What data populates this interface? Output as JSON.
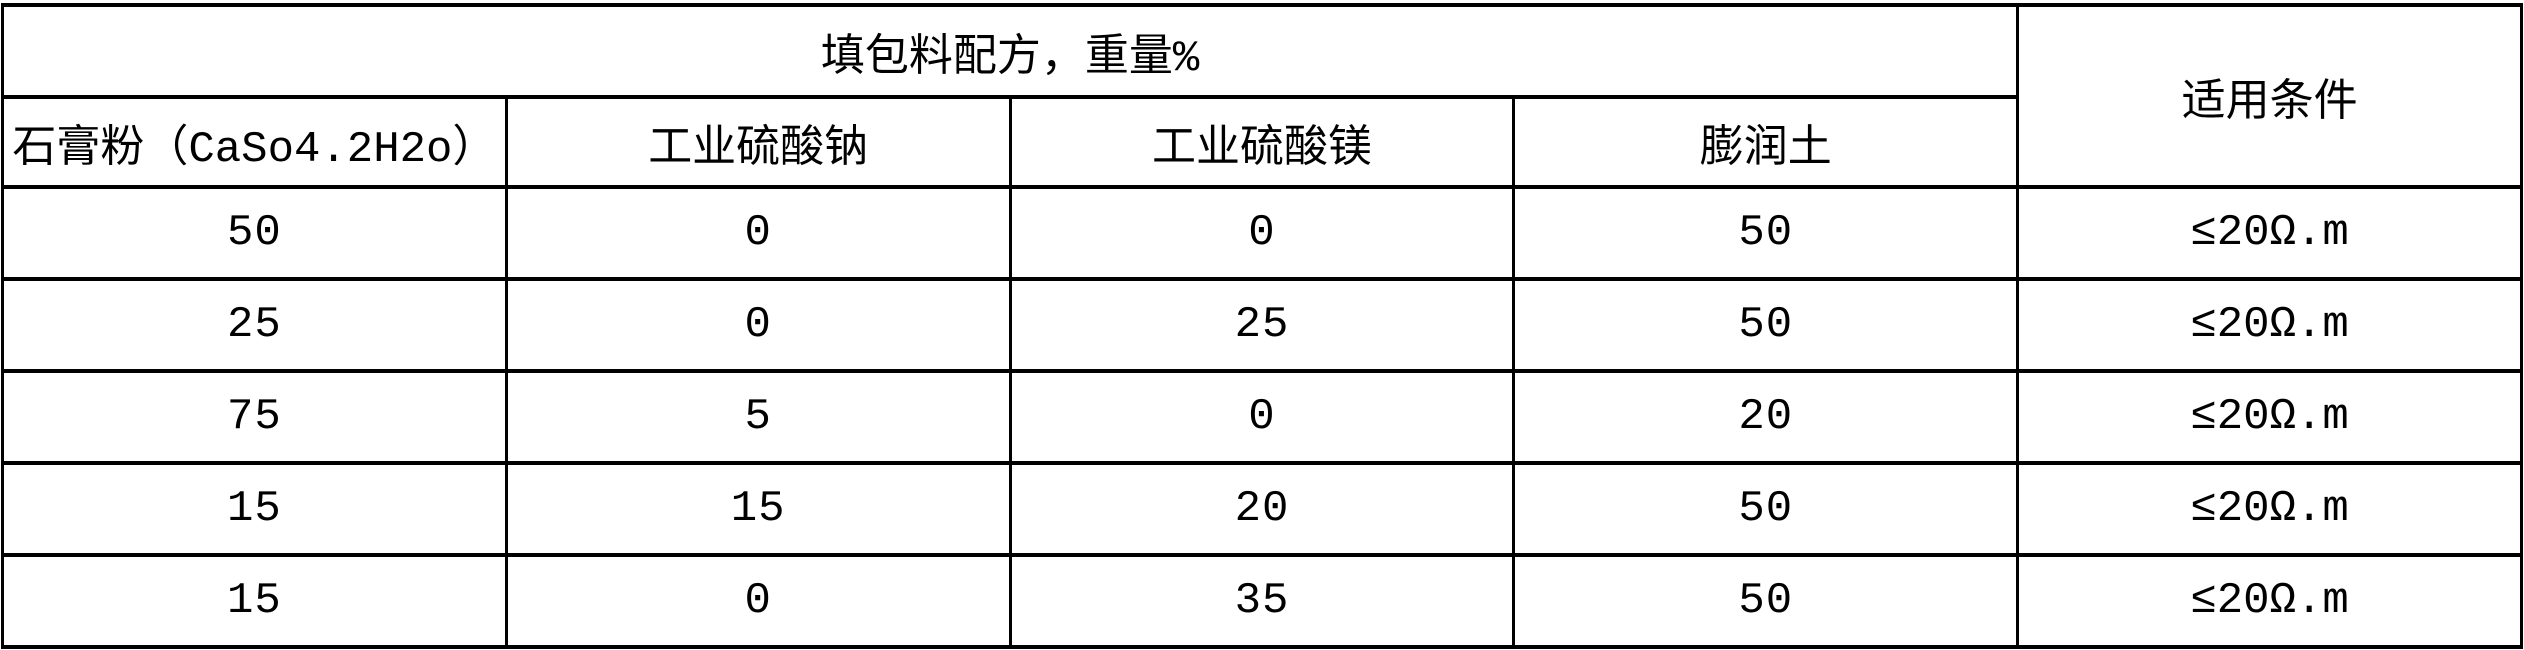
{
  "table": {
    "group_header": "填包料配方，重量%",
    "condition_header": "适用条件",
    "columns": [
      "石膏粉（CaSo4.2H2o）",
      "工业硫酸钠",
      "工业硫酸镁",
      "膨润土"
    ],
    "rows": [
      {
        "cells": [
          "50",
          "0",
          "0",
          "50"
        ],
        "condition": "≤20Ω.m"
      },
      {
        "cells": [
          "25",
          "0",
          "25",
          "50"
        ],
        "condition": "≤20Ω.m"
      },
      {
        "cells": [
          "75",
          "5",
          "0",
          "20"
        ],
        "condition": "≤20Ω.m"
      },
      {
        "cells": [
          "15",
          "15",
          "20",
          "50"
        ],
        "condition": "≤20Ω.m"
      },
      {
        "cells": [
          "15",
          "0",
          "35",
          "50"
        ],
        "condition": "≤20Ω.m"
      }
    ]
  },
  "colors": {
    "border": "#000000",
    "background": "#ffffff",
    "text": "#000000"
  }
}
